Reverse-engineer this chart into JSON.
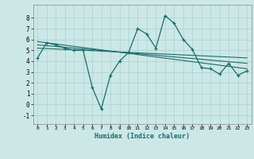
{
  "xlabel": "Humidex (Indice chaleur)",
  "bg_color": "#cce8e6",
  "line_color": "#1a6b6b",
  "grid_color": "#aed4d2",
  "xlim": [
    -0.5,
    23.5
  ],
  "ylim": [
    -1.8,
    9.2
  ],
  "xticks": [
    0,
    1,
    2,
    3,
    4,
    5,
    6,
    7,
    8,
    9,
    10,
    11,
    12,
    13,
    14,
    15,
    16,
    17,
    18,
    19,
    20,
    21,
    22,
    23
  ],
  "yticks": [
    -1,
    0,
    1,
    2,
    3,
    4,
    5,
    6,
    7,
    8
  ],
  "main_x": [
    0,
    1,
    2,
    3,
    4,
    5,
    6,
    7,
    8,
    9,
    10,
    11,
    12,
    13,
    14,
    15,
    16,
    17,
    18,
    19,
    20,
    21,
    22,
    23
  ],
  "main_y": [
    4.3,
    5.7,
    5.5,
    5.2,
    5.0,
    5.0,
    1.6,
    -0.4,
    2.7,
    4.0,
    4.8,
    7.0,
    6.5,
    5.2,
    8.2,
    7.5,
    6.0,
    5.1,
    3.4,
    3.3,
    2.8,
    3.8,
    2.7,
    3.1
  ],
  "line1_x": [
    0,
    23
  ],
  "line1_y": [
    5.2,
    4.3
  ],
  "line2_x": [
    0,
    23
  ],
  "line2_y": [
    5.5,
    3.8
  ],
  "line3_x": [
    0,
    23
  ],
  "line3_y": [
    5.8,
    3.3
  ]
}
